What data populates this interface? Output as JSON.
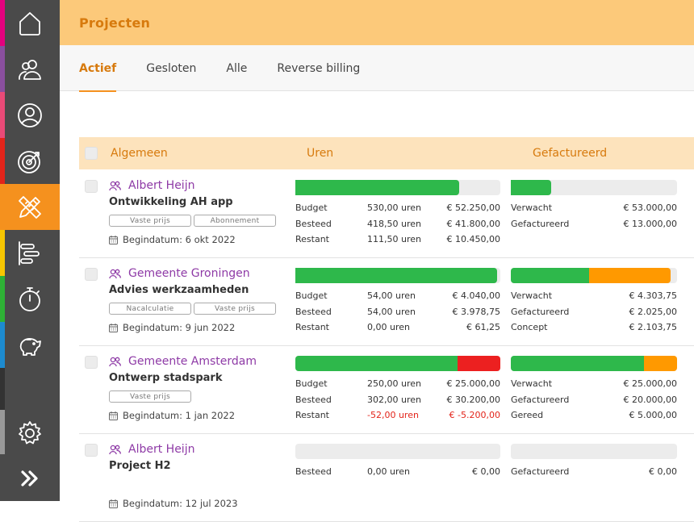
{
  "header": {
    "title": "Projecten"
  },
  "tabs": [
    {
      "label": "Actief",
      "active": true
    },
    {
      "label": "Gesloten",
      "active": false
    },
    {
      "label": "Alle",
      "active": false
    },
    {
      "label": "Reverse billing",
      "active": false
    }
  ],
  "columns": {
    "general": "Algemeen",
    "hours": "Uren",
    "invoiced": "Gefactureerd"
  },
  "sidebar": {
    "items": [
      {
        "icon": "home-icon",
        "color": "#e5007e"
      },
      {
        "icon": "users-icon",
        "color": "#8a4f9e"
      },
      {
        "icon": "user-circle-icon",
        "color": "#e94a77"
      },
      {
        "icon": "target-icon",
        "color": "#e3241a"
      },
      {
        "icon": "pencil-ruler-icon",
        "color": "#f5911e",
        "active": true
      },
      {
        "icon": "timeline-icon",
        "color": "#f7c600"
      },
      {
        "icon": "stopwatch-icon",
        "color": "#2eb135"
      },
      {
        "icon": "piggy-bank-icon",
        "color": "#1d8bcf"
      },
      {
        "icon": "settings-gear-icon",
        "color": "#999999"
      },
      {
        "icon": "double-chevron-right-icon",
        "color": "#4a4a4a"
      }
    ]
  },
  "colors": {
    "green": "#2eb84b",
    "orange": "#ff9900",
    "red": "#ec2020",
    "empty": "#ececec",
    "accent": "#d77a0d"
  },
  "projects": [
    {
      "client": "Albert Heijn",
      "name": "Ontwikkeling AH app",
      "tags": [
        "Vaste prijs",
        "Abonnement"
      ],
      "start": "Begindatum: 6 okt 2022",
      "hours_bar": [
        {
          "fraction": 0.8,
          "color": "green"
        }
      ],
      "hours": [
        {
          "label": "Budget",
          "hours": "530,00 uren",
          "amount": "€ 52.250,00"
        },
        {
          "label": "Besteed",
          "hours": "418,50 uren",
          "amount": "€ 41.800,00"
        },
        {
          "label": "Restant",
          "hours": "111,50 uren",
          "amount": "€ 10.450,00"
        }
      ],
      "invoice_bar": [
        {
          "fraction": 0.245,
          "color": "green"
        }
      ],
      "invoice": [
        {
          "label": "Verwacht",
          "amount": "€ 53.000,00"
        },
        {
          "label": "Gefactureerd",
          "amount": "€ 13.000,00"
        }
      ]
    },
    {
      "client": "Gemeente Groningen",
      "name": "Advies werkzaamheden",
      "tags": [
        "Nacalculatie",
        "Vaste prijs"
      ],
      "start": "Begindatum: 9 jun 2022",
      "hours_bar": [
        {
          "fraction": 0.985,
          "color": "green"
        }
      ],
      "hours": [
        {
          "label": "Budget",
          "hours": "54,00 uren",
          "amount": "€ 4.040,00"
        },
        {
          "label": "Besteed",
          "hours": "54,00 uren",
          "amount": "€ 3.978,75"
        },
        {
          "label": "Restant",
          "hours": "0,00 uren",
          "amount": "€ 61,25"
        }
      ],
      "invoice_bar": [
        {
          "fraction": 0.47,
          "color": "green"
        },
        {
          "fraction": 0.49,
          "color": "orange"
        }
      ],
      "invoice": [
        {
          "label": "Verwacht",
          "amount": "€ 4.303,75"
        },
        {
          "label": "Gefactureerd",
          "amount": "€ 2.025,00"
        },
        {
          "label": "Concept",
          "amount": "€ 2.103,75"
        }
      ]
    },
    {
      "client": "Gemeente Amsterdam",
      "name": "Ontwerp stadspark",
      "tags": [
        "Vaste prijs"
      ],
      "start": "Begindatum: 1 jan 2022",
      "hours_bar": [
        {
          "fraction": 0.79,
          "color": "green"
        },
        {
          "fraction": 0.21,
          "color": "red"
        }
      ],
      "hours": [
        {
          "label": "Budget",
          "hours": "250,00 uren",
          "amount": "€ 25.000,00"
        },
        {
          "label": "Besteed",
          "hours": "302,00 uren",
          "amount": "€ 30.200,00"
        },
        {
          "label": "Restant",
          "hours": "-52,00 uren",
          "amount": "€ -5.200,00",
          "negative": true
        }
      ],
      "invoice_bar": [
        {
          "fraction": 0.8,
          "color": "green"
        },
        {
          "fraction": 0.2,
          "color": "orange"
        }
      ],
      "invoice": [
        {
          "label": "Verwacht",
          "amount": "€ 25.000,00"
        },
        {
          "label": "Gefactureerd",
          "amount": "€ 20.000,00"
        },
        {
          "label": "Gereed",
          "amount": "€ 5.000,00"
        }
      ]
    },
    {
      "client": "Albert Heijn",
      "name": "Project H2",
      "tags": [],
      "start": "Begindatum: 12 jul 2023",
      "hours_bar": [],
      "hours": [
        {
          "label": "Besteed",
          "hours": "0,00 uren",
          "amount": "€ 0,00"
        }
      ],
      "invoice_bar": [],
      "invoice": [
        {
          "label": "Gefactureerd",
          "amount": "€ 0,00"
        }
      ]
    }
  ]
}
